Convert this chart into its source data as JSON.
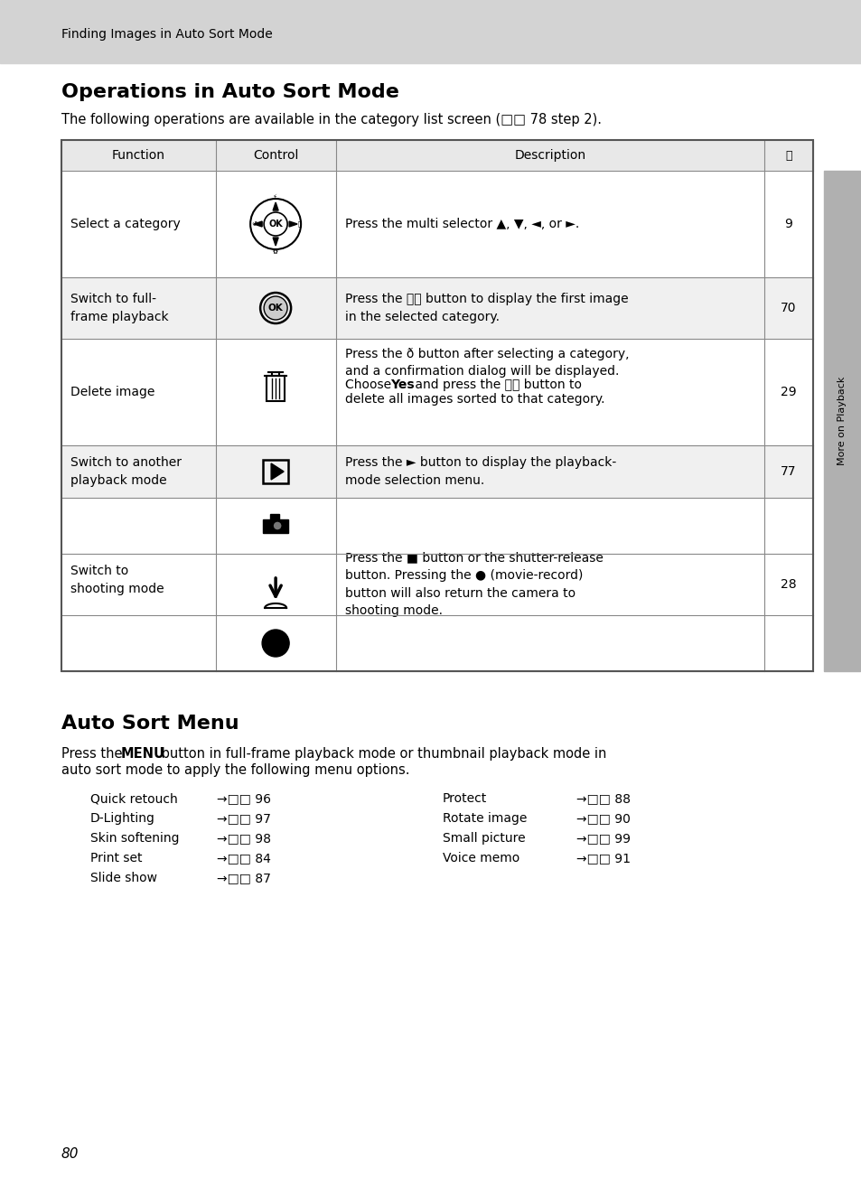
{
  "page_bg": "#ffffff",
  "header_bg": "#d3d3d3",
  "header_text": "Finding Images in Auto Sort Mode",
  "header_text_color": "#000000",
  "header_font_size": 10,
  "title1": "Operations in Auto Sort Mode",
  "title1_font_size": 16,
  "subtitle1": "The following operations are available in the category list screen (□□ 78 step 2).",
  "subtitle1_font_size": 10.5,
  "title2": "Auto Sort Menu",
  "title2_font_size": 16,
  "subtitle2_font_size": 10.5,
  "table_header_bg": "#e8e8e8",
  "table_row_bg_odd": "#f0f0f0",
  "table_row_bg_even": "#ffffff",
  "table_header_color": "#000000",
  "sidebar_text": "More on Playback",
  "sidebar_bg": "#b0b0b0",
  "page_number": "80",
  "menu_left_col": [
    {
      "label": "Quick retouch",
      "page": "96"
    },
    {
      "label": "D-Lighting",
      "page": "97"
    },
    {
      "label": "Skin softening",
      "page": "98"
    },
    {
      "label": "Print set",
      "page": "84"
    },
    {
      "label": "Slide show",
      "page": "87"
    }
  ],
  "menu_right_col": [
    {
      "label": "Protect",
      "page": "88"
    },
    {
      "label": "Rotate image",
      "page": "90"
    },
    {
      "label": "Small picture",
      "page": "99"
    },
    {
      "label": "Voice memo",
      "page": "91"
    }
  ]
}
